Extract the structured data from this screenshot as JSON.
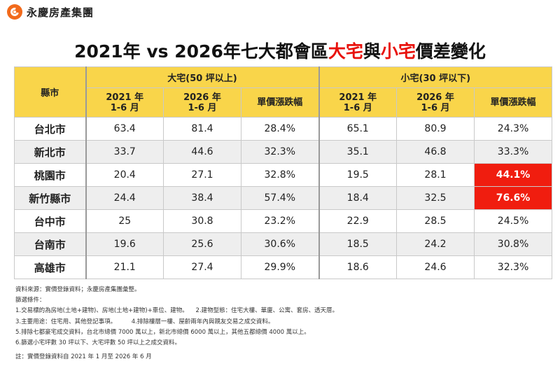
{
  "brand": {
    "name": "永慶房產集團",
    "logo_icon": "yungching-swirl-logo",
    "accent": "#f26a1b"
  },
  "title": {
    "part1": "2021年 vs 2026年七大都會區",
    "red1": "大宅",
    "mid": "與",
    "red2": "小宅",
    "part2": "價差變化"
  },
  "table": {
    "city_header": "縣市",
    "large_header": "大宅(50 坪以上)",
    "small_header": "小宅(30 坪以下)",
    "sub_headers": [
      {
        "l1": "2021 年",
        "l2": "1-6 月"
      },
      {
        "l1": "2026 年",
        "l2": "1-6 月"
      },
      {
        "l1": "單價漲跌幅",
        "l2": ""
      },
      {
        "l1": "2021 年",
        "l2": "1-6 月"
      },
      {
        "l1": "2026 年",
        "l2": "1-6 月"
      },
      {
        "l1": "單價漲跌幅",
        "l2": ""
      }
    ],
    "highlight_color": "#f01d0f",
    "header_color": "#f9d54a"
  },
  "chart_data": {
    "type": "table",
    "columns": [
      "縣市",
      "大宅 2021 年 1-6 月",
      "大宅 2026 年 1-6 月",
      "大宅 單價漲跌幅",
      "小宅 2021 年 1-6 月",
      "小宅 2026 年 1-6 月",
      "小宅 單價漲跌幅"
    ],
    "rows": [
      {
        "city": "台北市",
        "large_2021": "63.4",
        "large_2026": "81.4",
        "large_chg": "28.4%",
        "small_2021": "65.1",
        "small_2026": "80.9",
        "small_chg": "24.3%",
        "highlight": false
      },
      {
        "city": "新北市",
        "large_2021": "33.7",
        "large_2026": "44.6",
        "large_chg": "32.3%",
        "small_2021": "35.1",
        "small_2026": "46.8",
        "small_chg": "33.3%",
        "highlight": false
      },
      {
        "city": "桃園市",
        "large_2021": "20.4",
        "large_2026": "27.1",
        "large_chg": "32.8%",
        "small_2021": "19.5",
        "small_2026": "28.1",
        "small_chg": "44.1%",
        "highlight": true
      },
      {
        "city": "新竹縣市",
        "large_2021": "24.4",
        "large_2026": "38.4",
        "large_chg": "57.4%",
        "small_2021": "18.4",
        "small_2026": "32.5",
        "small_chg": "76.6%",
        "highlight": true
      },
      {
        "city": "台中市",
        "large_2021": "25",
        "large_2026": "30.8",
        "large_chg": "23.2%",
        "small_2021": "22.9",
        "small_2026": "28.5",
        "small_chg": "24.5%",
        "highlight": false
      },
      {
        "city": "台南市",
        "large_2021": "19.6",
        "large_2026": "25.6",
        "large_chg": "30.6%",
        "small_2021": "18.5",
        "small_2026": "24.2",
        "small_chg": "30.8%",
        "highlight": false
      },
      {
        "city": "高雄市",
        "large_2021": "21.1",
        "large_2026": "27.4",
        "large_chg": "29.9%",
        "small_2021": "18.6",
        "small_2026": "24.6",
        "small_chg": "32.3%",
        "highlight": false
      }
    ]
  },
  "notes": {
    "source": "資料來源：實價登錄資料；永慶房產集團彙整。",
    "criteria_title": "篩選條件：",
    "item1": "1.交易標的為房地(土地+建物)、房地(土地+建物)+車位、建物。    2.建物型態：住宅大樓、華廈、公寓、套房、透天厝。",
    "item2": "3.主要用途：住宅用、其他登記事項。        4.排除樓層一樓、屋齡兩年內與親友交易之成交資料。",
    "item3": "5.排除七都豪宅成交資料，台北市總價 7000 萬以上，新北市總價 6000 萬以上，其他五都總價 4000 萬以上。",
    "item4": "6.篩選小宅坪數 30 坪以下、大宅坪數 50 坪以上之成交資料。",
    "footnote": "註：實價登錄資料自 2021 年 1 月至 2026 年 6 月"
  }
}
